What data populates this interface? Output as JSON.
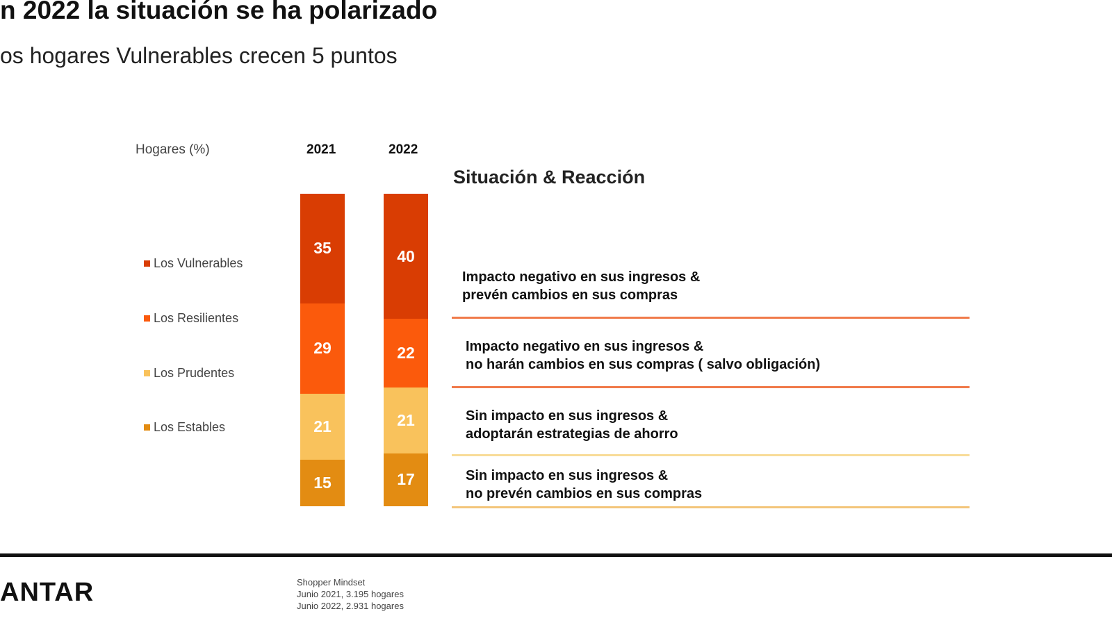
{
  "title": "n 2022 la situación se ha polarizado",
  "subtitle": "os hogares Vulnerables crecen 5 puntos",
  "section_title": "Situación & Reacción",
  "logo": "ANTAR",
  "source": [
    "Shopper Mindset",
    "Junio 2021, 3.195 hogares",
    "Junio 2022, 2.931 hogares"
  ],
  "chart_data": {
    "type": "bar",
    "stacked": true,
    "ylabel": "Hogares (%)",
    "categories": [
      "2021",
      "2022"
    ],
    "series": [
      {
        "name": "Los Vulnerables",
        "color": "#d93d03",
        "values": [
          35,
          40
        ],
        "description": [
          "Impacto negativo en sus ingresos &",
          "prevén cambios  en sus compras"
        ],
        "rule_color": "#f07a4a"
      },
      {
        "name": "Los Resilientes",
        "color": "#fb5a0c",
        "values": [
          29,
          22
        ],
        "description": [
          "Impacto negativo en sus ingresos &",
          "no harán cambios en sus compras ( salvo obligación)"
        ],
        "rule_color": "#f07a4a"
      },
      {
        "name": "Los Prudentes",
        "color": "#f9c25c",
        "values": [
          21,
          21
        ],
        "description": [
          "Sin impacto en sus ingresos &",
          "adoptarán estrategias de ahorro"
        ],
        "rule_color": "#f8dc98"
      },
      {
        "name": "Los Estables",
        "color": "#e38c12",
        "values": [
          15,
          17
        ],
        "description": [
          "Sin impacto en sus ingresos &",
          "no prevén cambios en sus compras"
        ],
        "rule_color": "#f3c57a"
      }
    ],
    "ylim": [
      0,
      100
    ],
    "legend": "left"
  }
}
